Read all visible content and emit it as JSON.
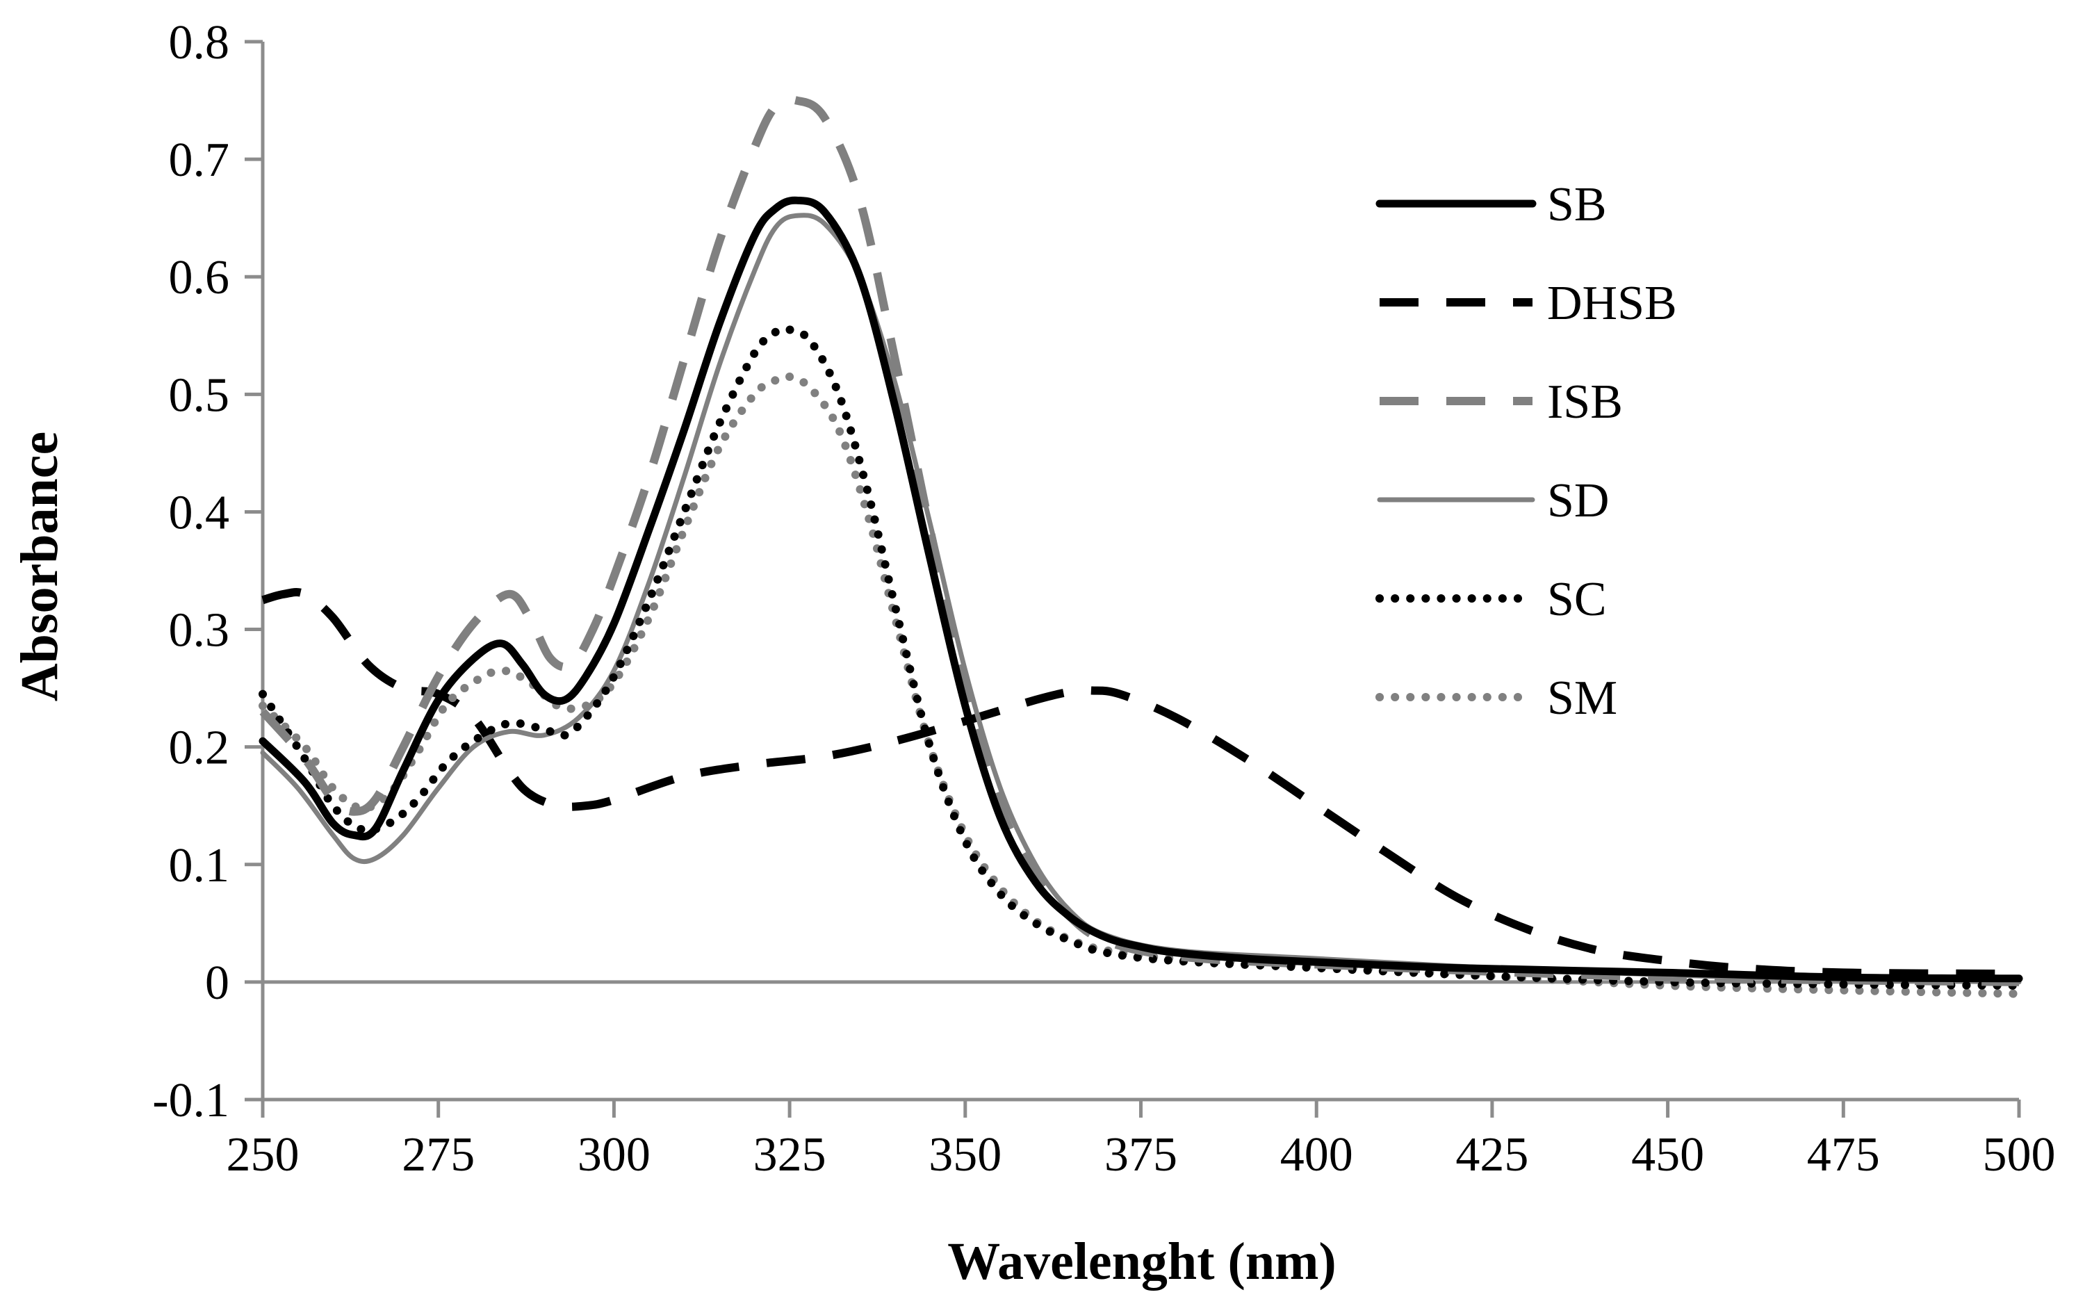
{
  "chart_data": {
    "type": "line",
    "title": "",
    "xlabel": "Wavelenght (nm)",
    "ylabel": "Absorbance",
    "xlim": [
      250,
      500
    ],
    "ylim": [
      -0.1,
      0.8
    ],
    "xticks": [
      "250",
      "275",
      "300",
      "325",
      "350",
      "375",
      "400",
      "425",
      "450",
      "475",
      "500"
    ],
    "yticks": [
      "-0.1",
      "0",
      "0.1",
      "0.2",
      "0.3",
      "0.4",
      "0.5",
      "0.6",
      "0.7",
      "0.8"
    ],
    "legend_position": "top-right",
    "grid": false,
    "series": [
      {
        "name": "SB",
        "color": "#000000",
        "style": "solid-thick",
        "x": [
          250,
          256,
          260,
          263,
          266,
          270,
          275,
          280,
          284,
          287,
          290,
          293,
          296,
          300,
          305,
          310,
          315,
          320,
          323,
          326,
          330,
          335,
          340,
          345,
          350,
          355,
          360,
          365,
          370,
          375,
          380,
          390,
          400,
          420,
          450,
          475,
          500
        ],
        "y": [
          0.205,
          0.17,
          0.135,
          0.125,
          0.13,
          0.18,
          0.24,
          0.275,
          0.288,
          0.27,
          0.245,
          0.24,
          0.26,
          0.305,
          0.385,
          0.47,
          0.56,
          0.635,
          0.658,
          0.665,
          0.655,
          0.6,
          0.49,
          0.36,
          0.235,
          0.14,
          0.085,
          0.055,
          0.038,
          0.03,
          0.025,
          0.02,
          0.017,
          0.012,
          0.008,
          0.004,
          0.003
        ]
      },
      {
        "name": "DHSB",
        "color": "#000000",
        "style": "dash-thick",
        "x": [
          250,
          253,
          256,
          260,
          265,
          270,
          275,
          280,
          285,
          288,
          292,
          296,
          300,
          310,
          320,
          330,
          340,
          350,
          360,
          365,
          368,
          372,
          380,
          390,
          400,
          410,
          420,
          430,
          440,
          450,
          460,
          475,
          500
        ],
        "y": [
          0.325,
          0.33,
          0.33,
          0.31,
          0.27,
          0.25,
          0.245,
          0.225,
          0.18,
          0.16,
          0.15,
          0.15,
          0.155,
          0.175,
          0.185,
          0.192,
          0.205,
          0.222,
          0.24,
          0.247,
          0.248,
          0.245,
          0.225,
          0.19,
          0.15,
          0.11,
          0.072,
          0.045,
          0.027,
          0.018,
          0.012,
          0.008,
          0.007
        ]
      },
      {
        "name": "ISB",
        "color": "#808080",
        "style": "dash-thick",
        "x": [
          250,
          256,
          260,
          263,
          266,
          270,
          275,
          280,
          285,
          288,
          291,
          294,
          297,
          300,
          305,
          310,
          315,
          320,
          323,
          326,
          330,
          335,
          340,
          345,
          350,
          355,
          360,
          365,
          370,
          380,
          400,
          450,
          500
        ],
        "y": [
          0.23,
          0.19,
          0.155,
          0.145,
          0.155,
          0.2,
          0.26,
          0.305,
          0.33,
          0.31,
          0.275,
          0.27,
          0.3,
          0.345,
          0.43,
          0.53,
          0.63,
          0.71,
          0.745,
          0.75,
          0.735,
          0.665,
          0.53,
          0.385,
          0.25,
          0.15,
          0.09,
          0.055,
          0.035,
          0.022,
          0.015,
          0.004,
          0.0
        ]
      },
      {
        "name": "SD",
        "color": "#808080",
        "style": "solid-thin",
        "x": [
          250,
          255,
          260,
          263,
          266,
          270,
          275,
          280,
          285,
          290,
          295,
          300,
          305,
          310,
          315,
          320,
          323,
          326,
          330,
          335,
          340,
          345,
          350,
          355,
          360,
          365,
          370,
          380,
          400,
          425,
          450,
          475,
          500
        ],
        "y": [
          0.195,
          0.165,
          0.125,
          0.105,
          0.105,
          0.125,
          0.165,
          0.2,
          0.213,
          0.21,
          0.225,
          0.265,
          0.34,
          0.43,
          0.525,
          0.605,
          0.642,
          0.652,
          0.645,
          0.6,
          0.51,
          0.39,
          0.265,
          0.165,
          0.1,
          0.06,
          0.04,
          0.027,
          0.02,
          0.012,
          0.006,
          0.002,
          0.0
        ]
      },
      {
        "name": "SC",
        "color": "#000000",
        "style": "dotted",
        "x": [
          250,
          256,
          260,
          264,
          268,
          272,
          276,
          280,
          285,
          290,
          293,
          296,
          300,
          305,
          310,
          315,
          320,
          323,
          325,
          328,
          332,
          336,
          340,
          345,
          350,
          355,
          360,
          365,
          370,
          380,
          400,
          425,
          450,
          475,
          500
        ],
        "y": [
          0.245,
          0.19,
          0.15,
          0.13,
          0.135,
          0.155,
          0.185,
          0.205,
          0.22,
          0.215,
          0.21,
          0.225,
          0.26,
          0.325,
          0.4,
          0.475,
          0.535,
          0.553,
          0.555,
          0.545,
          0.5,
          0.42,
          0.32,
          0.2,
          0.12,
          0.075,
          0.05,
          0.035,
          0.025,
          0.018,
          0.012,
          0.005,
          0.0,
          -0.002,
          -0.003
        ]
      },
      {
        "name": "SM",
        "color": "#808080",
        "style": "dotted",
        "x": [
          250,
          256,
          260,
          264,
          268,
          272,
          276,
          280,
          284,
          288,
          292,
          296,
          300,
          305,
          310,
          315,
          320,
          323,
          325,
          328,
          332,
          336,
          340,
          345,
          350,
          355,
          360,
          365,
          370,
          380,
          400,
          425,
          450,
          475,
          500
        ],
        "y": [
          0.235,
          0.2,
          0.165,
          0.148,
          0.16,
          0.195,
          0.235,
          0.255,
          0.265,
          0.255,
          0.235,
          0.235,
          0.255,
          0.31,
          0.385,
          0.455,
          0.5,
          0.512,
          0.515,
          0.505,
          0.47,
          0.4,
          0.31,
          0.2,
          0.125,
          0.08,
          0.052,
          0.036,
          0.027,
          0.02,
          0.014,
          0.005,
          -0.003,
          -0.007,
          -0.01
        ]
      }
    ]
  }
}
